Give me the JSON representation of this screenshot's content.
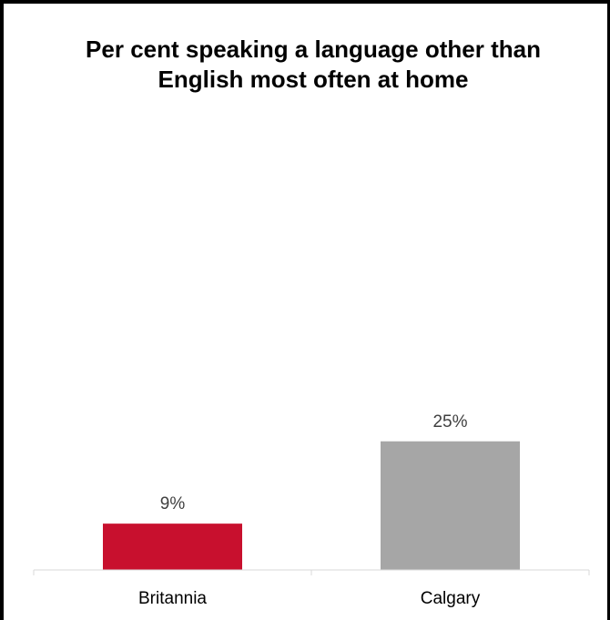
{
  "chart_data": {
    "type": "bar",
    "title": "Per cent speaking a language other than English most often at home",
    "categories": [
      "Britannia",
      "Calgary"
    ],
    "values": [
      9,
      25
    ],
    "value_labels": [
      "9%",
      "25%"
    ],
    "colors": [
      "#C8102E",
      "#A6A6A6"
    ],
    "xlabel": "",
    "ylabel": "",
    "ylim": [
      0,
      50
    ],
    "grid": false,
    "legend": "none"
  }
}
